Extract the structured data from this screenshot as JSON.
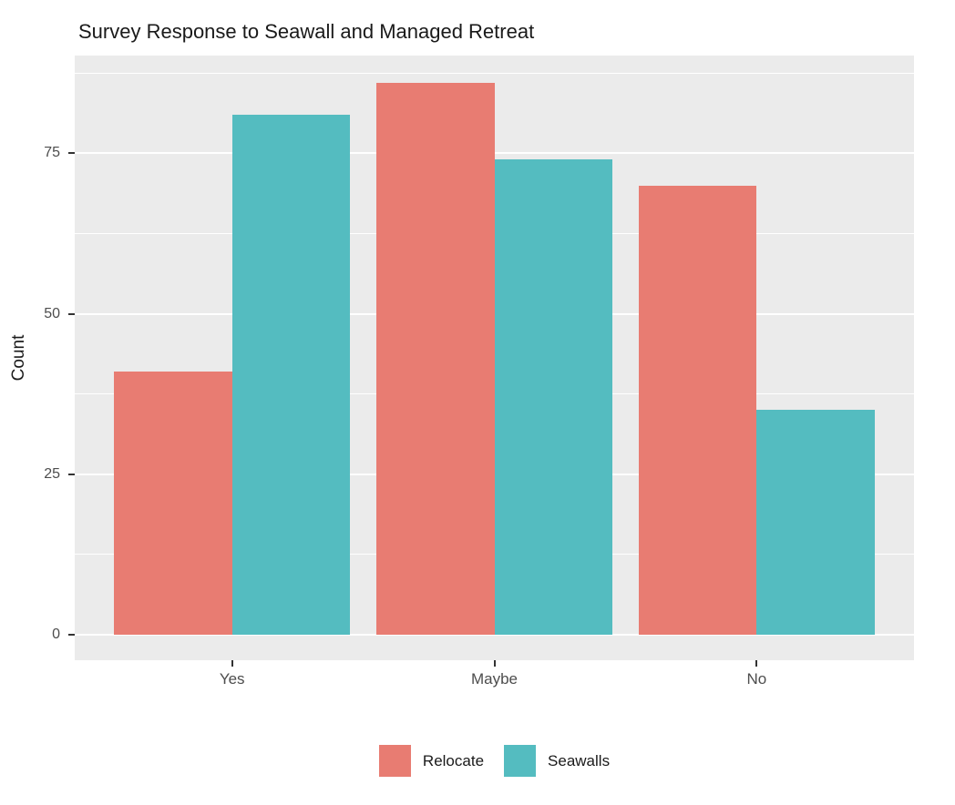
{
  "chart_data": {
    "type": "bar",
    "title": "Survey Response to Seawall and Managed Retreat",
    "xlabel": "",
    "ylabel": "Count",
    "categories": [
      "Yes",
      "Maybe",
      "No"
    ],
    "series": [
      {
        "name": "Relocate",
        "color": "#E87C72",
        "values": [
          41,
          86,
          70
        ]
      },
      {
        "name": "Seawalls",
        "color": "#54BCC0",
        "values": [
          81,
          74,
          35
        ]
      }
    ],
    "ylim": [
      -4,
      90.25
    ],
    "yticks": [
      0,
      25,
      50,
      75
    ],
    "ytick_labels": [
      "0",
      "25",
      "50",
      "75"
    ],
    "minor_gridlines": [
      12.5,
      37.5,
      62.5,
      87.5
    ],
    "grid": "horizontal major + minor, white lines on gray panel",
    "legend_position": "bottom-center",
    "legend_items": [
      "Relocate",
      "Seawalls"
    ],
    "colors": {
      "panel_background": "#EBEBEB",
      "gridline": "#FFFFFF",
      "axis_text": "#4D4D4D",
      "tick_mark": "#333333",
      "title_text": "#1A1A1A",
      "figure_background": "#FFFFFF"
    }
  }
}
